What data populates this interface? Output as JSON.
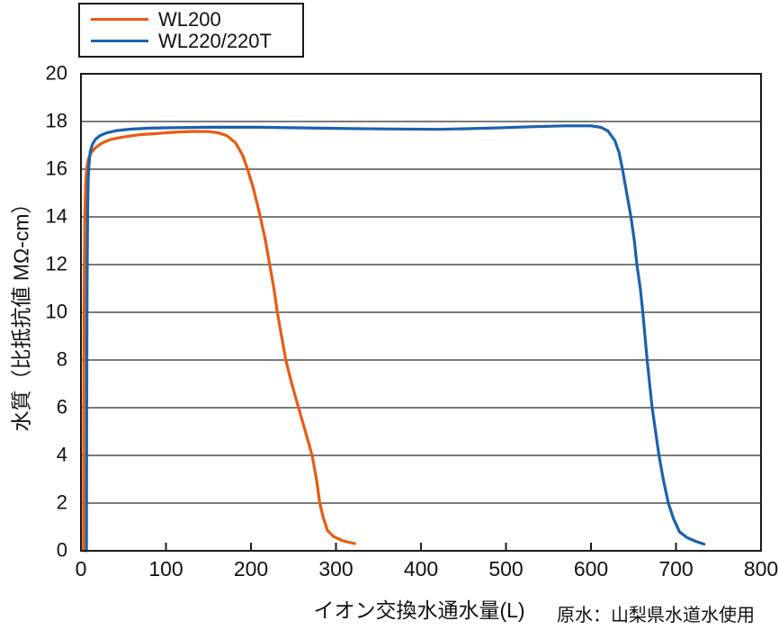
{
  "chart_data": {
    "type": "line",
    "title": "",
    "xlabel": "イオン交換水通水量(L)",
    "ylabel": "水質（比抵抗値 MΩ-cm）",
    "note": "原水：山梨県水道水使用",
    "xlim": [
      0,
      800
    ],
    "ylim": [
      0,
      20
    ],
    "x_ticks": [
      0,
      100,
      200,
      300,
      400,
      500,
      600,
      700,
      800
    ],
    "y_ticks": [
      0,
      2,
      4,
      6,
      8,
      10,
      12,
      14,
      16,
      18,
      20
    ],
    "grid": "horizontal-only",
    "legend_position": "outside-top-left",
    "axis_color": "#1a1a1a",
    "series": [
      {
        "name": "WL200",
        "color": "#E85C10",
        "points": [
          [
            3,
            0
          ],
          [
            3.3,
            6
          ],
          [
            3.8,
            11
          ],
          [
            4.5,
            14
          ],
          [
            5.5,
            15.4
          ],
          [
            7,
            16.1
          ],
          [
            9,
            16.45
          ],
          [
            12,
            16.7
          ],
          [
            17,
            16.9
          ],
          [
            25,
            17.1
          ],
          [
            35,
            17.25
          ],
          [
            50,
            17.35
          ],
          [
            70,
            17.45
          ],
          [
            90,
            17.5
          ],
          [
            110,
            17.55
          ],
          [
            130,
            17.58
          ],
          [
            150,
            17.58
          ],
          [
            162,
            17.52
          ],
          [
            172,
            17.4
          ],
          [
            182,
            17.1
          ],
          [
            190,
            16.6
          ],
          [
            196,
            16.0
          ],
          [
            202,
            15.3
          ],
          [
            207,
            14.6
          ],
          [
            211,
            14.0
          ],
          [
            217,
            13.0
          ],
          [
            222,
            12.0
          ],
          [
            227,
            11.0
          ],
          [
            231,
            10.0
          ],
          [
            236,
            9.0
          ],
          [
            241,
            8.0
          ],
          [
            248,
            7.0
          ],
          [
            256,
            6.0
          ],
          [
            264,
            5.0
          ],
          [
            272,
            4.0
          ],
          [
            277,
            3.0
          ],
          [
            281,
            2.0
          ],
          [
            285,
            1.4
          ],
          [
            290,
            0.85
          ],
          [
            297,
            0.6
          ],
          [
            308,
            0.42
          ],
          [
            322,
            0.3
          ]
        ]
      },
      {
        "name": "WL220/220T",
        "color": "#1C61AE",
        "points": [
          [
            6.5,
            0
          ],
          [
            6.8,
            6
          ],
          [
            7.2,
            11
          ],
          [
            7.8,
            14.2
          ],
          [
            8.6,
            15.6
          ],
          [
            9.6,
            16.3
          ],
          [
            11,
            16.75
          ],
          [
            13.5,
            17.05
          ],
          [
            17,
            17.25
          ],
          [
            22,
            17.4
          ],
          [
            30,
            17.52
          ],
          [
            42,
            17.62
          ],
          [
            58,
            17.68
          ],
          [
            80,
            17.72
          ],
          [
            110,
            17.74
          ],
          [
            150,
            17.76
          ],
          [
            210,
            17.76
          ],
          [
            280,
            17.72
          ],
          [
            350,
            17.69
          ],
          [
            420,
            17.67
          ],
          [
            480,
            17.72
          ],
          [
            530,
            17.78
          ],
          [
            570,
            17.82
          ],
          [
            600,
            17.82
          ],
          [
            612,
            17.75
          ],
          [
            620,
            17.6
          ],
          [
            628,
            17.2
          ],
          [
            633,
            16.7
          ],
          [
            637,
            16.0
          ],
          [
            642,
            15.0
          ],
          [
            647,
            14.0
          ],
          [
            651,
            13.0
          ],
          [
            654,
            12.0
          ],
          [
            658,
            11.0
          ],
          [
            661,
            10.0
          ],
          [
            663.5,
            9.0
          ],
          [
            666,
            8.0
          ],
          [
            669,
            7.0
          ],
          [
            672,
            6.0
          ],
          [
            676,
            5.0
          ],
          [
            680,
            4.0
          ],
          [
            685,
            3.0
          ],
          [
            691,
            2.0
          ],
          [
            697,
            1.35
          ],
          [
            704,
            0.8
          ],
          [
            713,
            0.55
          ],
          [
            723,
            0.4
          ],
          [
            733,
            0.28
          ]
        ]
      }
    ]
  }
}
